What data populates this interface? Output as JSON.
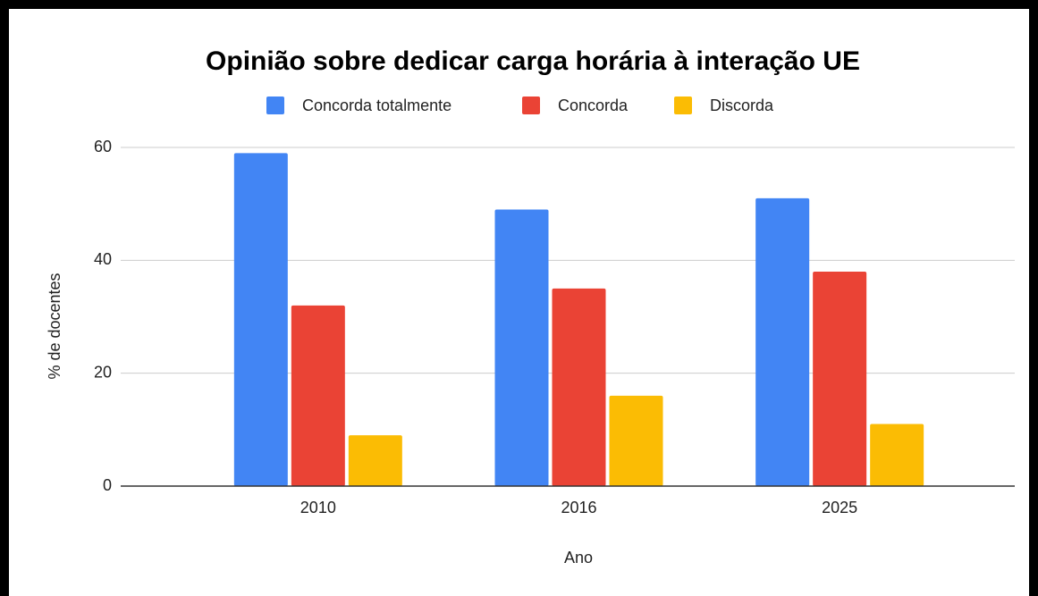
{
  "chart_data": {
    "type": "bar",
    "title": "Opinião sobre dedicar carga horária à interação UE",
    "x_label": "Ano",
    "y_label": "% de docentes",
    "categories": [
      "2010",
      "2016",
      "2025"
    ],
    "series": [
      {
        "name": "Concorda totalmente",
        "color": "#4285f4",
        "values": [
          59,
          49,
          51
        ]
      },
      {
        "name": "Concorda",
        "color": "#ea4335",
        "values": [
          32,
          35,
          38
        ]
      },
      {
        "name": "Discorda",
        "color": "#fbbc04",
        "values": [
          9,
          16,
          11
        ]
      }
    ],
    "ylim": [
      0,
      60
    ],
    "yticks": [
      0,
      20,
      40,
      60
    ],
    "grid": true,
    "legend": "top"
  }
}
